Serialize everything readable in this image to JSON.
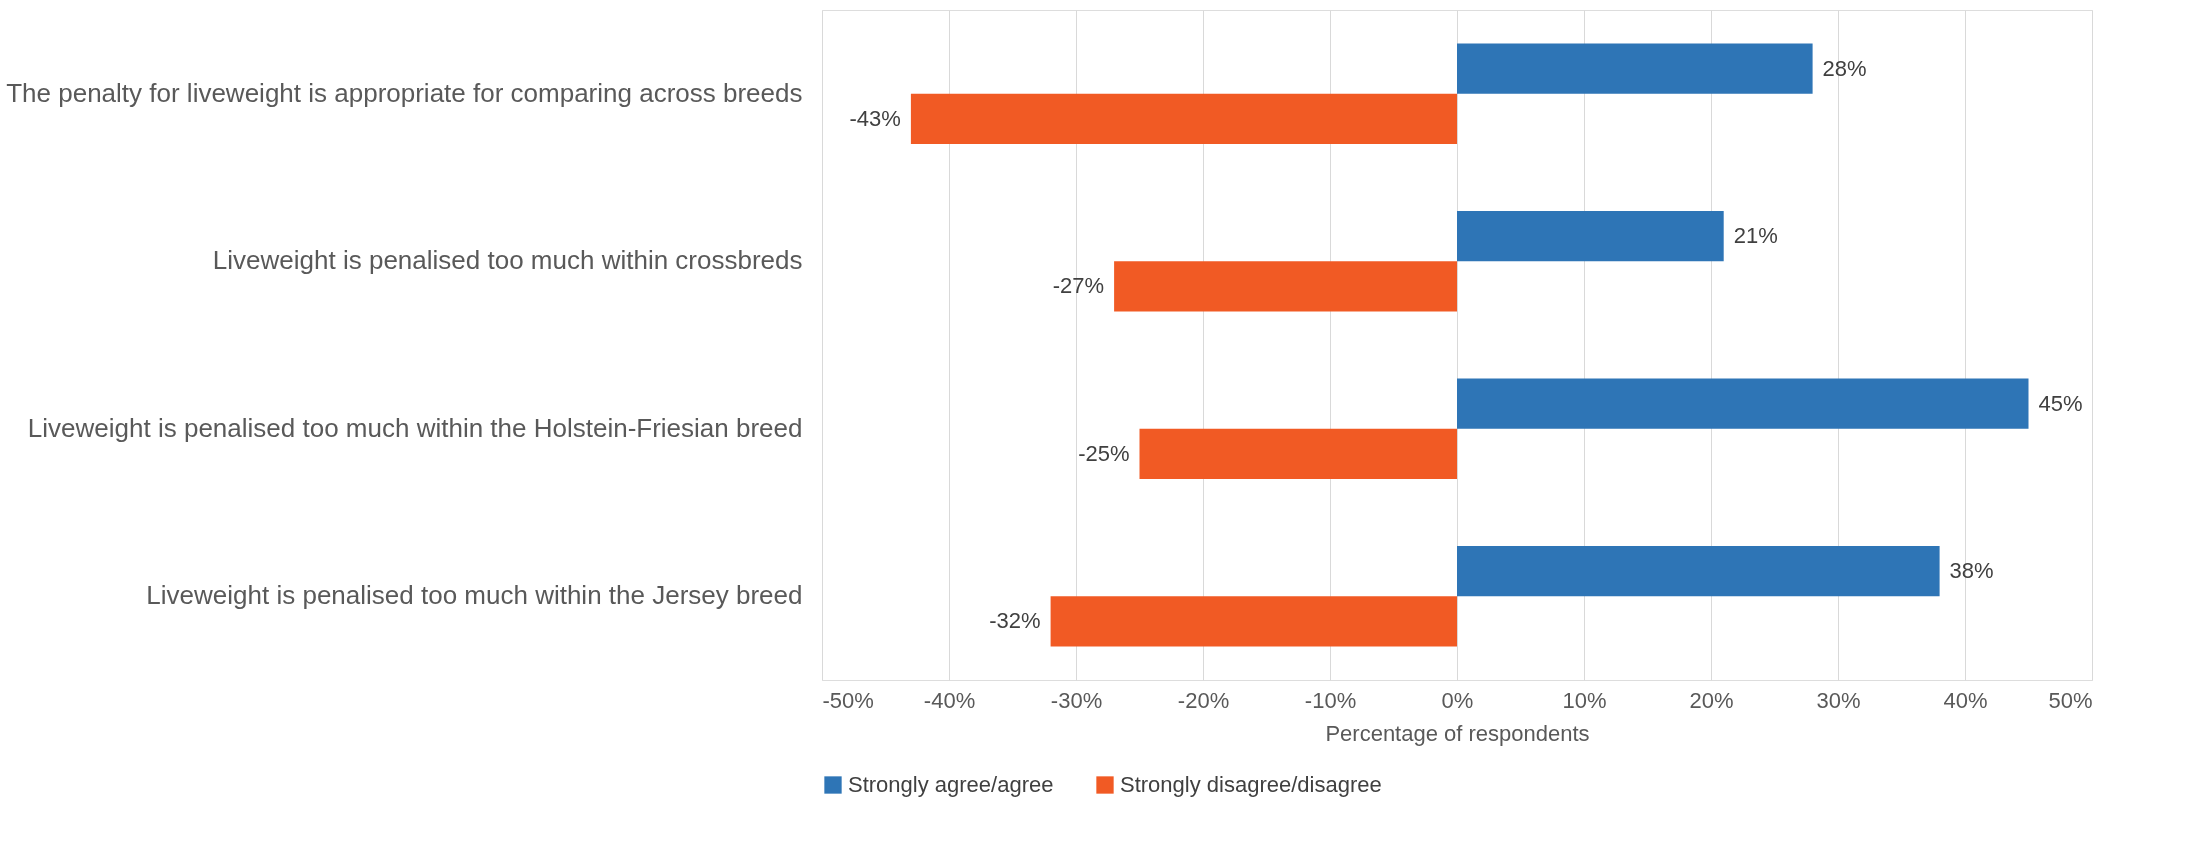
{
  "chart_data": {
    "type": "bar",
    "orientation": "horizontal",
    "xlabel": "Percentage of respondents",
    "categories": [
      "The penalty for liveweight is appropriate for comparing across breeds",
      "Liveweight is penalised too much within crossbreds",
      "Liveweight is penalised too much within the Holstein-Friesian breed",
      "Liveweight is penalised too much within the Jersey breed"
    ],
    "series": [
      {
        "name": "Strongly agree/agree",
        "color": "#2e75b6",
        "values": [
          28,
          21,
          45,
          38
        ],
        "value_labels": [
          "28%",
          "21%",
          "45%",
          "38%"
        ]
      },
      {
        "name": "Strongly disagree/disagree",
        "color": "#f15a24",
        "values": [
          -43,
          -27,
          -25,
          -32
        ],
        "value_labels": [
          "-43%",
          "-27%",
          "-25%",
          "-32%"
        ]
      }
    ],
    "xlim": [
      -50,
      50
    ],
    "xticks": [
      {
        "value": -50,
        "label": "-50%"
      },
      {
        "value": -40,
        "label": "-40%"
      },
      {
        "value": -30,
        "label": "-30%"
      },
      {
        "value": -20,
        "label": "-20%"
      },
      {
        "value": -10,
        "label": "-10%"
      },
      {
        "value": 0,
        "label": "0%"
      },
      {
        "value": 10,
        "label": "10%"
      },
      {
        "value": 20,
        "label": "20%"
      },
      {
        "value": 30,
        "label": "30%"
      },
      {
        "value": 40,
        "label": "40%"
      },
      {
        "value": 50,
        "label": "50%"
      }
    ],
    "grid": "x",
    "legend": "bottom"
  }
}
